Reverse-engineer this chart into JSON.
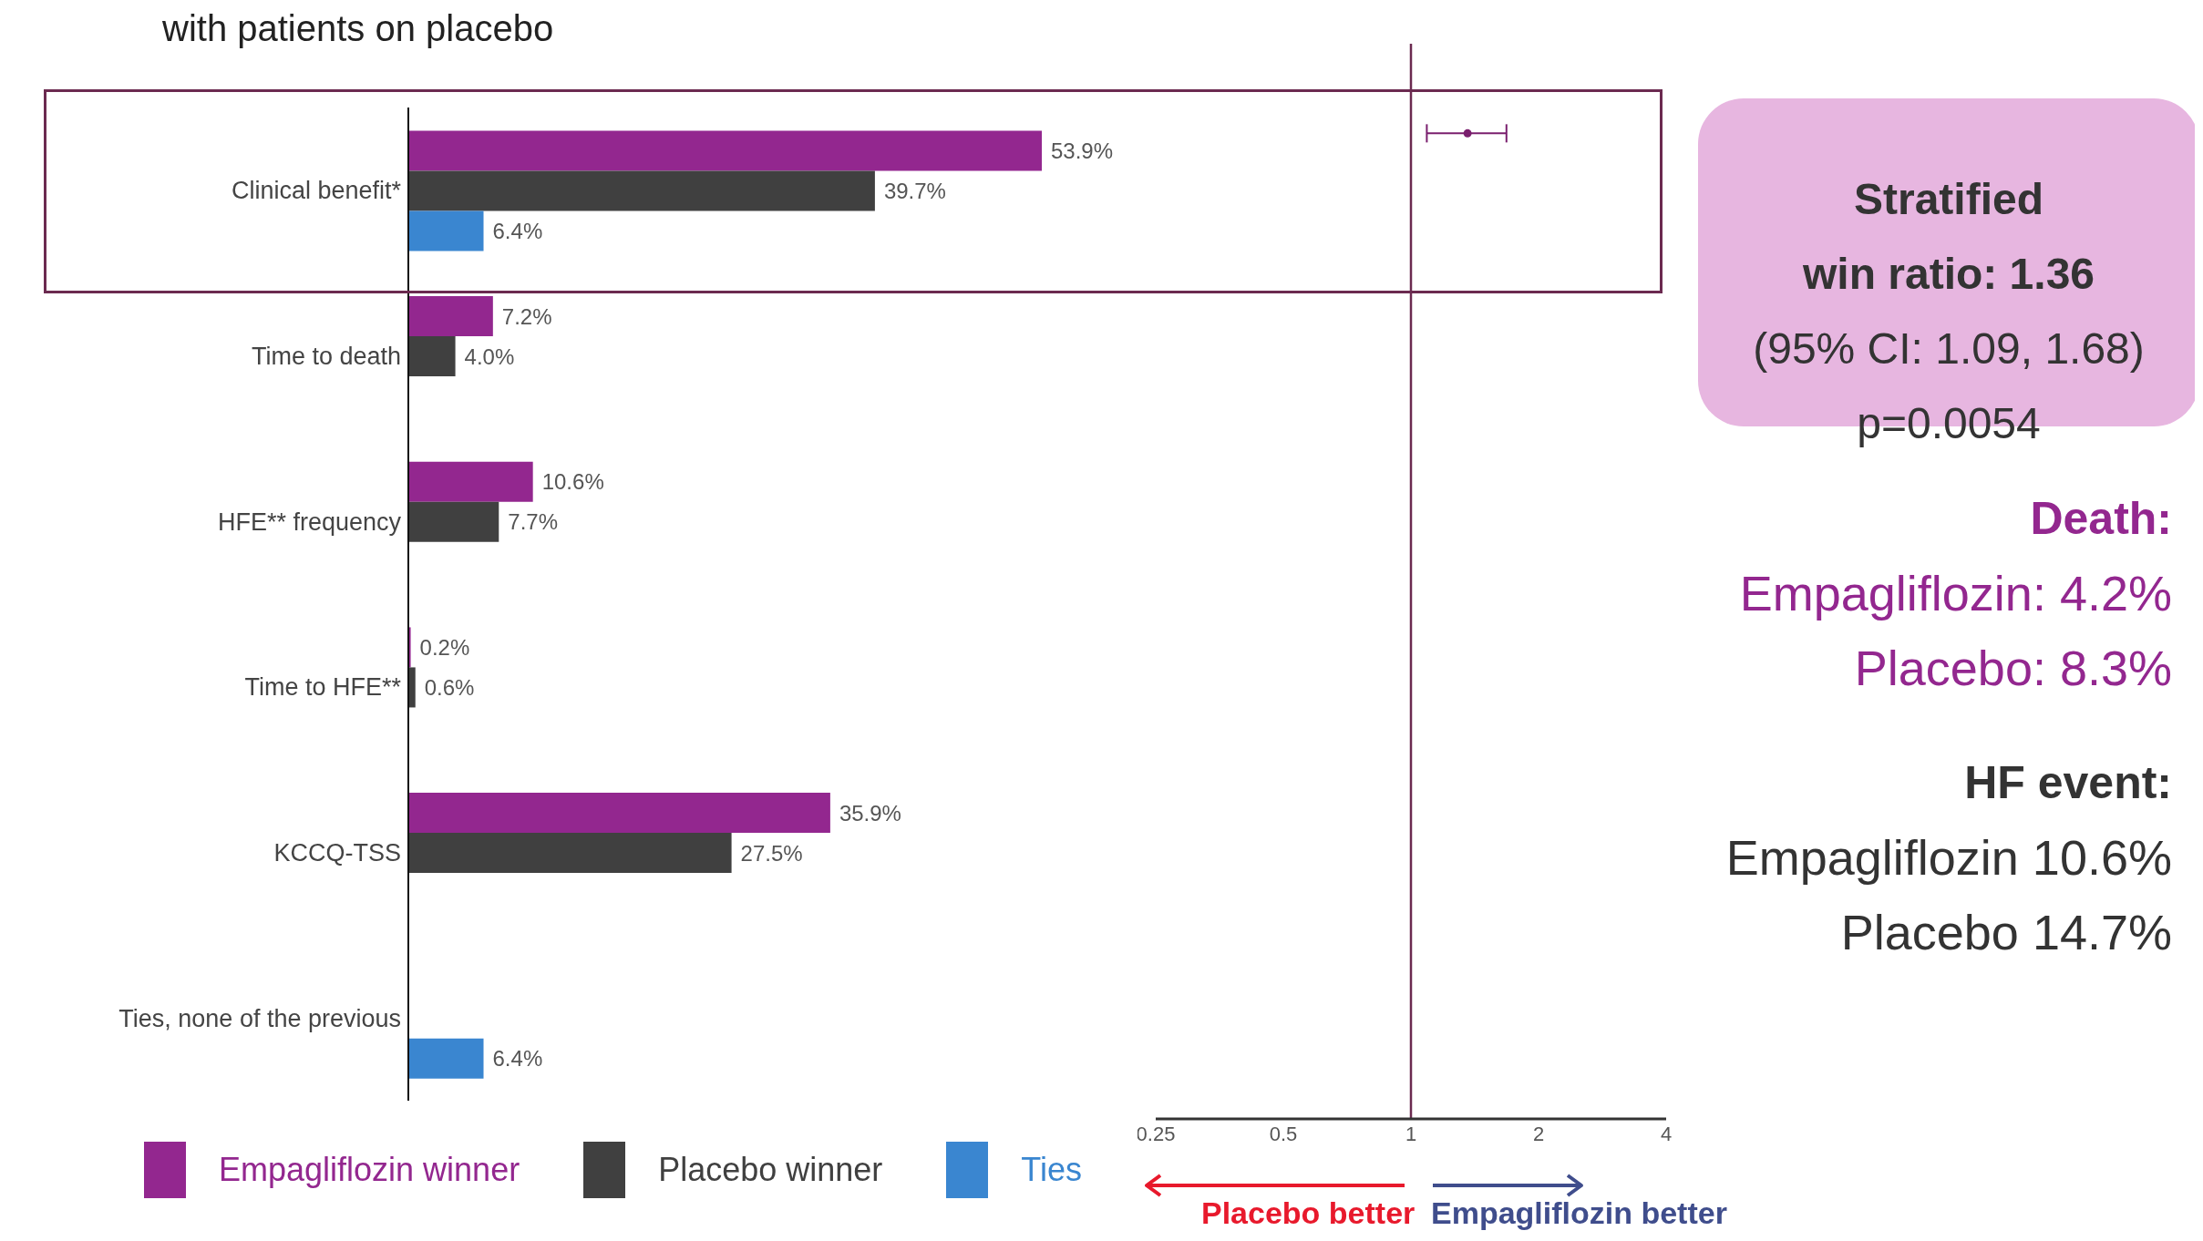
{
  "chart_data": [
    {
      "type": "bar",
      "orientation": "horizontal",
      "title": "with patients on placebo",
      "categories": [
        "Clinical benefit*",
        "Time to death",
        "HFE** frequency",
        "Time to HFE**",
        "KCCQ-TSS",
        "Ties, none of the previous"
      ],
      "series": [
        {
          "name": "Empagliflozin winner",
          "color": "#93278f",
          "values": [
            53.9,
            7.2,
            10.6,
            0.2,
            35.9,
            null
          ],
          "value_labels": [
            "53.9%",
            "7.2%",
            "10.6%",
            "0.2%",
            "35.9%",
            null
          ]
        },
        {
          "name": "Placebo winner",
          "color": "#404040",
          "values": [
            39.7,
            4.0,
            7.7,
            0.6,
            27.5,
            null
          ],
          "value_labels": [
            "39.7%",
            "4.0%",
            "7.7%",
            "0.6%",
            "27.5%",
            null
          ]
        },
        {
          "name": "Ties",
          "color": "#3a86d0",
          "values": [
            6.4,
            null,
            null,
            null,
            null,
            6.4
          ],
          "value_labels": [
            "6.4%",
            null,
            null,
            null,
            null,
            "6.4%"
          ]
        }
      ],
      "legend": "bottom",
      "tick_labels": "y"
    },
    {
      "type": "scatter",
      "orientation": "horizontal",
      "categories": [
        null,
        null,
        null,
        null,
        null,
        null
      ],
      "values": [
        1.36,
        null,
        null,
        null,
        null,
        null
      ],
      "errors": [
        [
          1.09,
          1.68
        ],
        null,
        null,
        null,
        null,
        null
      ],
      "color": "#7a1f6e",
      "xlim": [
        0.25,
        4
      ],
      "xticks": [
        0.25,
        0.5,
        1,
        2,
        4
      ],
      "log": "x",
      "tick_labels": "x",
      "ref_lines": [
        {
          "axis": "x",
          "value": 1,
          "color": "#6b2a50"
        }
      ],
      "annotations": [
        "Placebo better",
        "Empagliflozin better"
      ]
    },
    {
      "type": "other",
      "annotations": [
        "Stratified",
        "win ratio: 1.36",
        "(95% CI: 1.09, 1.68)",
        "p=0.0054",
        "Death:",
        "Empagliflozin: 4.2%",
        "Placebo: 8.3%",
        "HF event:",
        "Empagliflozin 10.6%",
        "Placebo 14.7%"
      ]
    }
  ]
}
